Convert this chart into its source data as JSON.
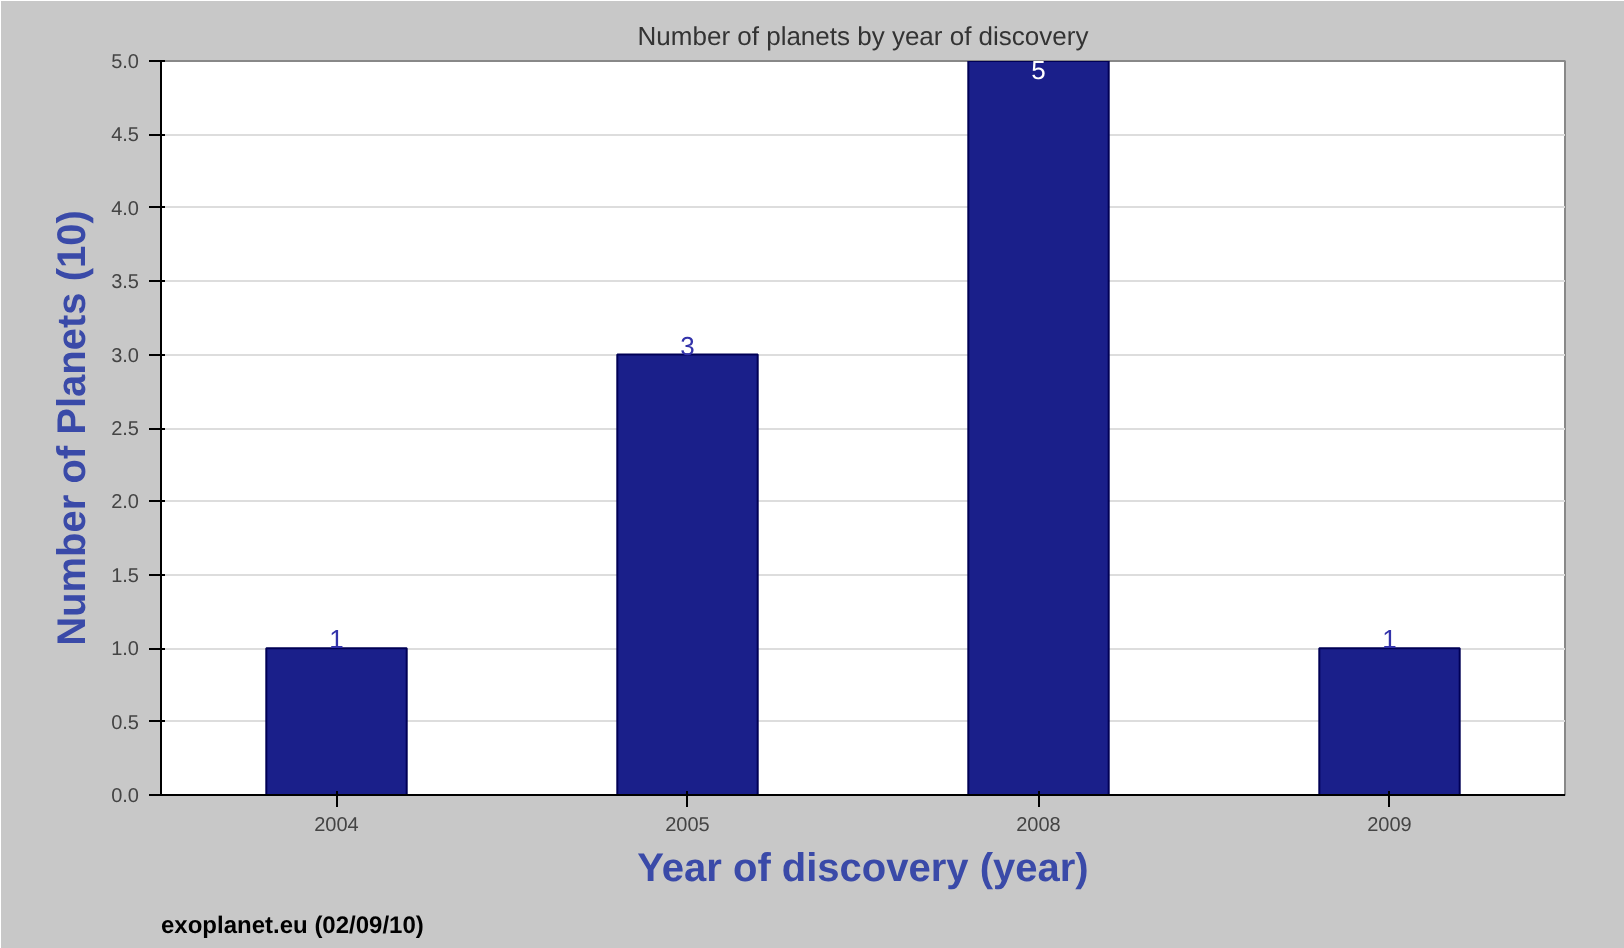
{
  "chart_data": {
    "type": "bar",
    "title": "Number of planets by year of discovery",
    "xlabel": "Year of discovery (year)",
    "ylabel": "Number of Planets (10)",
    "categories": [
      "2004",
      "2005",
      "2008",
      "2009"
    ],
    "values": [
      1,
      3,
      5,
      1
    ],
    "color": "#1a1f8a",
    "ylim": [
      0,
      5
    ],
    "yticks": [
      {
        "value": 0,
        "label": "0.0"
      },
      {
        "value": 0.5,
        "label": "0.5"
      },
      {
        "value": 1,
        "label": "1.0"
      },
      {
        "value": 1.5,
        "label": "1.5"
      },
      {
        "value": 2,
        "label": "2.0"
      },
      {
        "value": 2.5,
        "label": "2.5"
      },
      {
        "value": 3,
        "label": "3.0"
      },
      {
        "value": 3.5,
        "label": "3.5"
      },
      {
        "value": 4,
        "label": "4.0"
      },
      {
        "value": 4.5,
        "label": "4.5"
      },
      {
        "value": 5,
        "label": "5.0"
      }
    ],
    "grid": "y",
    "data_labels": true,
    "annotations": [
      "exoplanet.eu (02/09/10)"
    ]
  }
}
